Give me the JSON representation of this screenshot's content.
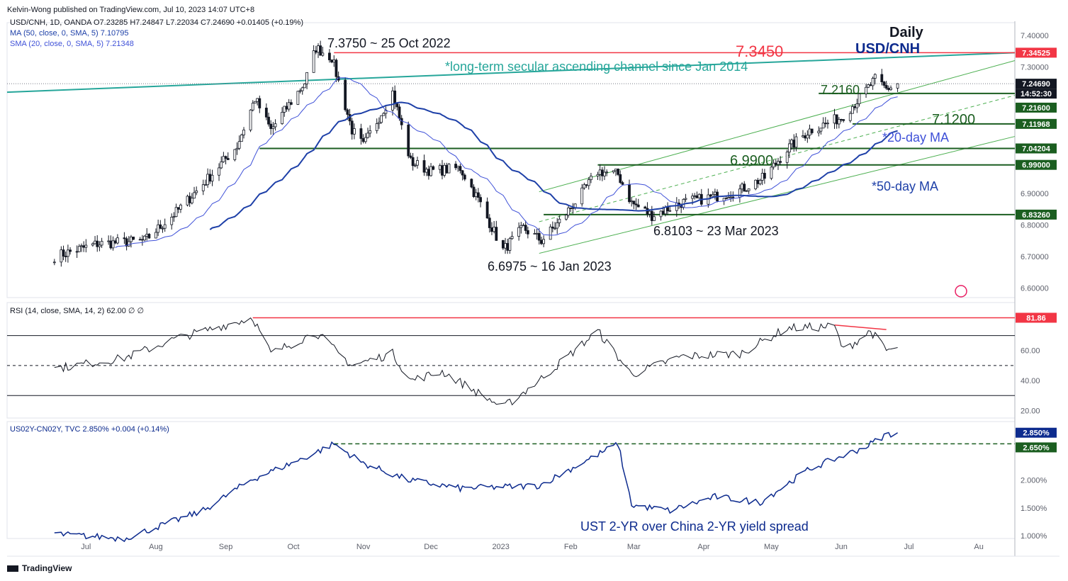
{
  "header": {
    "published": "Kelvin-Wong published on TradingView.com, Jul 10, 2023 14:07 UTC+8",
    "brand": "TradingView"
  },
  "panes": {
    "price": {
      "legend_main": "USD/CNH, 1D, OANDA  O7.23285  H7.24847  L7.22034  C7.24690  +0.01405 (+0.19%)",
      "legend_ma50": "MA (50, close, 0, SMA, 5)  7.10795",
      "legend_sma20": "SMA (20, close, 0, SMA, 5)  7.21348",
      "title_interval": "Daily",
      "title_symbol": "USD/CNH",
      "axis_ticks": [
        "7.40000",
        "7.30000",
        "6.90000",
        "6.80000",
        "6.70000",
        "6.60000"
      ],
      "price_labels": [
        {
          "text": "7.34525",
          "color": "#f23645"
        },
        {
          "text": "7.24690",
          "color": "#131722"
        },
        {
          "text": "14:52:30",
          "color": "#131722"
        },
        {
          "text": "7.21600",
          "color": "#1b5e20"
        },
        {
          "text": "7.11968",
          "color": "#1b5e20"
        },
        {
          "text": "7.04204",
          "color": "#1b5e20"
        },
        {
          "text": "6.99000",
          "color": "#1b5e20"
        },
        {
          "text": "6.83260",
          "color": "#1b5e20"
        }
      ],
      "annotations": {
        "high": "7.3750 ~ 25 Oct 2022",
        "resistance": "7.3450",
        "channel": "*long-term secular ascending channel since Jan 2014",
        "level_7216": "7.2160",
        "level_712": "7.1200",
        "ma20": "*20-day MA",
        "level_699": "6.9900",
        "ma50": "*50-day MA",
        "low_mar": "6.8103 ~ 23 Mar 2023",
        "low_jan": "6.6975 ~ 16 Jan 2023"
      }
    },
    "rsi": {
      "legend": "RSI (14, close, SMA, 14, 2)  62.00  ∅  ∅",
      "axis_ticks": [
        "60.00",
        "40.00",
        "20.00"
      ],
      "label_value": "81.86"
    },
    "spread": {
      "legend": "US02Y-CN02Y, TVC  2.850%  +0.004 (+0.14%)",
      "axis_ticks": [
        "2.000%",
        "1.500%",
        "1.000%"
      ],
      "label_current": "2.850%",
      "label_level": "2.650%",
      "caption": "UST 2-YR over China 2-YR yield spread"
    },
    "time_axis": [
      "Jul",
      "Aug",
      "Sep",
      "Oct",
      "Nov",
      "Dec",
      "2023",
      "Feb",
      "Mar",
      "Apr",
      "May",
      "Jun",
      "Jul",
      "Au"
    ]
  },
  "chart_data": [
    {
      "type": "candlestick",
      "symbol": "USD/CNH",
      "interval": "1D",
      "ylim": [
        6.57,
        7.44
      ],
      "last": {
        "open": 7.23285,
        "high": 7.24847,
        "low": 7.22034,
        "close": 7.2469
      },
      "ma50_last": 7.10795,
      "sma20_last": 7.21348,
      "anchors": [
        {
          "date": "2022-07-01",
          "price": 6.7
        },
        {
          "date": "2022-07-20",
          "price": 6.74
        },
        {
          "date": "2022-08-10",
          "price": 6.75
        },
        {
          "date": "2022-08-24",
          "price": 6.84
        },
        {
          "date": "2022-09-05",
          "price": 6.93
        },
        {
          "date": "2022-09-20",
          "price": 7.05
        },
        {
          "date": "2022-09-28",
          "price": 7.2
        },
        {
          "date": "2022-10-05",
          "price": 7.1
        },
        {
          "date": "2022-10-20",
          "price": 7.25
        },
        {
          "date": "2022-10-25",
          "price": 7.36
        },
        {
          "date": "2022-11-01",
          "price": 7.33
        },
        {
          "date": "2022-11-10",
          "price": 7.1
        },
        {
          "date": "2022-11-15",
          "price": 7.05
        },
        {
          "date": "2022-11-28",
          "price": 7.22
        },
        {
          "date": "2022-12-06",
          "price": 7.0
        },
        {
          "date": "2022-12-15",
          "price": 6.97
        },
        {
          "date": "2022-12-28",
          "price": 6.98
        },
        {
          "date": "2023-01-05",
          "price": 6.88
        },
        {
          "date": "2023-01-16",
          "price": 6.72
        },
        {
          "date": "2023-01-25",
          "price": 6.79
        },
        {
          "date": "2023-02-02",
          "price": 6.75
        },
        {
          "date": "2023-02-10",
          "price": 6.81
        },
        {
          "date": "2023-02-20",
          "price": 6.9
        },
        {
          "date": "2023-02-27",
          "price": 6.97
        },
        {
          "date": "2023-03-08",
          "price": 6.96
        },
        {
          "date": "2023-03-14",
          "price": 6.87
        },
        {
          "date": "2023-03-23",
          "price": 6.83
        },
        {
          "date": "2023-04-05",
          "price": 6.87
        },
        {
          "date": "2023-04-20",
          "price": 6.89
        },
        {
          "date": "2023-05-01",
          "price": 6.91
        },
        {
          "date": "2023-05-12",
          "price": 6.95
        },
        {
          "date": "2023-05-22",
          "price": 7.04
        },
        {
          "date": "2023-06-01",
          "price": 7.1
        },
        {
          "date": "2023-06-15",
          "price": 7.14
        },
        {
          "date": "2023-06-23",
          "price": 7.2
        },
        {
          "date": "2023-06-30",
          "price": 7.26
        },
        {
          "date": "2023-07-05",
          "price": 7.23
        },
        {
          "date": "2023-07-10",
          "price": 7.2469
        }
      ],
      "levels": [
        {
          "value": 7.345,
          "color": "#f23645"
        },
        {
          "value": 7.216,
          "color": "#1b5e20"
        },
        {
          "value": 7.1197,
          "color": "#1b5e20"
        },
        {
          "value": 7.042,
          "color": "#1b5e20"
        },
        {
          "value": 6.99,
          "color": "#1b5e20"
        },
        {
          "value": 6.8326,
          "color": "#1b5e20"
        }
      ],
      "colors": {
        "up": "#131722",
        "down": "#131722",
        "ma20": "#3f51d8",
        "ma50": "#1e40a8",
        "channel": "#26a69a",
        "trend": "#4caf50"
      }
    },
    {
      "type": "line",
      "name": "RSI (14, close, SMA, 14, 2)",
      "ylim": [
        15,
        92
      ],
      "levels": [
        70,
        50,
        30
      ],
      "anchors": [
        {
          "date": "2022-07-01",
          "value": 48
        },
        {
          "date": "2022-08-01",
          "value": 55
        },
        {
          "date": "2022-08-24",
          "value": 68
        },
        {
          "date": "2022-09-27",
          "value": 82
        },
        {
          "date": "2022-10-05",
          "value": 58
        },
        {
          "date": "2022-10-25",
          "value": 72
        },
        {
          "date": "2022-11-10",
          "value": 50
        },
        {
          "date": "2022-11-28",
          "value": 58
        },
        {
          "date": "2022-12-06",
          "value": 40
        },
        {
          "date": "2022-12-20",
          "value": 46
        },
        {
          "date": "2023-01-16",
          "value": 22
        },
        {
          "date": "2023-02-01",
          "value": 40
        },
        {
          "date": "2023-02-27",
          "value": 73
        },
        {
          "date": "2023-03-14",
          "value": 44
        },
        {
          "date": "2023-04-05",
          "value": 56
        },
        {
          "date": "2023-05-01",
          "value": 58
        },
        {
          "date": "2023-05-22",
          "value": 75
        },
        {
          "date": "2023-06-12",
          "value": 76
        },
        {
          "date": "2023-06-16",
          "value": 60
        },
        {
          "date": "2023-06-28",
          "value": 73
        },
        {
          "date": "2023-07-05",
          "value": 60
        },
        {
          "date": "2023-07-10",
          "value": 62
        }
      ],
      "overbought_peak": 81.86,
      "last": 62.0,
      "color": "#131722"
    },
    {
      "type": "line",
      "name": "US02Y-CN02Y",
      "ylim": [
        0.95,
        3.05
      ],
      "anchors": [
        {
          "date": "2022-07-01",
          "value": 1.03
        },
        {
          "date": "2022-08-01",
          "value": 0.95
        },
        {
          "date": "2022-08-15",
          "value": 1.15
        },
        {
          "date": "2022-09-05",
          "value": 1.45
        },
        {
          "date": "2022-09-26",
          "value": 2.0
        },
        {
          "date": "2022-10-20",
          "value": 2.4
        },
        {
          "date": "2022-11-02",
          "value": 2.65
        },
        {
          "date": "2022-11-15",
          "value": 2.3
        },
        {
          "date": "2022-12-05",
          "value": 2.0
        },
        {
          "date": "2022-12-28",
          "value": 1.85
        },
        {
          "date": "2023-02-01",
          "value": 1.9
        },
        {
          "date": "2023-03-08",
          "value": 2.65
        },
        {
          "date": "2023-03-14",
          "value": 1.55
        },
        {
          "date": "2023-03-31",
          "value": 1.45
        },
        {
          "date": "2023-04-20",
          "value": 1.7
        },
        {
          "date": "2023-05-10",
          "value": 1.6
        },
        {
          "date": "2023-06-01",
          "value": 2.2
        },
        {
          "date": "2023-06-26",
          "value": 2.6
        },
        {
          "date": "2023-07-05",
          "value": 2.82
        },
        {
          "date": "2023-07-10",
          "value": 2.85
        }
      ],
      "level": 2.65,
      "last": 2.85,
      "color": "#0d2b8e"
    }
  ]
}
